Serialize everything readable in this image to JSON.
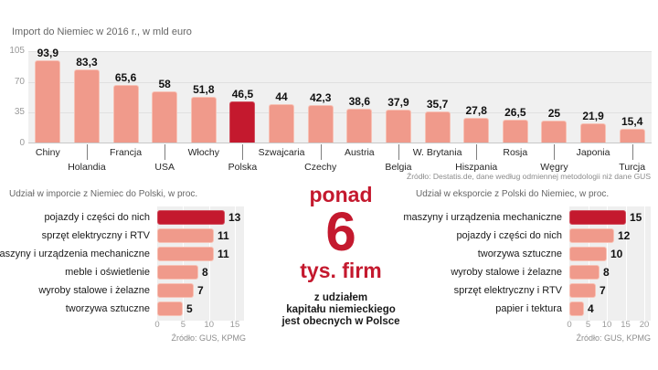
{
  "colors": {
    "bar_fill": "#F09A8B",
    "bar_border": "#F7C2B6",
    "highlight_fill": "#C4192E",
    "highlight_border": "#D15160",
    "plot_background": "#F0F0F0",
    "panel_background": "#EFEFEF",
    "title_text": "#666666",
    "tick_text": "#999999",
    "source_text": "#8C8C8C",
    "label_text": "#1A1A1A"
  },
  "chart_data": [
    {
      "type": "bar",
      "orientation": "vertical",
      "title": "Import do Niemiec w 2016 r., w mld euro",
      "categories": [
        "Chiny",
        "Holandia",
        "Francja",
        "USA",
        "Włochy",
        "Polska",
        "Szwajcaria",
        "Czechy",
        "Austria",
        "Belgia",
        "W. Brytania",
        "Hiszpania",
        "Rosja",
        "Węgry",
        "Japonia",
        "Turcja"
      ],
      "values": [
        93.9,
        83.3,
        65.6,
        58,
        51.8,
        46.5,
        44,
        42.3,
        38.6,
        37.9,
        35.7,
        27.8,
        26.5,
        25,
        21.9,
        15.4
      ],
      "value_labels": [
        "93,9",
        "83,3",
        "65,6",
        "58",
        "51,8",
        "46,5",
        "44",
        "42,3",
        "38,6",
        "37,9",
        "35,7",
        "27,8",
        "26,5",
        "25",
        "21,9",
        "15,4"
      ],
      "highlighted_category": "Polska",
      "y_ticks": [
        105,
        70,
        35,
        0
      ],
      "ylim": [
        0,
        105
      ],
      "grid": true,
      "legend": false,
      "source": "Źródło: Destatis.de, dane według odmiennej metodologii niż dane GUS"
    },
    {
      "type": "bar",
      "orientation": "horizontal",
      "title": "Udział w imporcie z Niemiec do Polski, w proc.",
      "categories": [
        "pojazdy i części do nich",
        "sprzęt elektryczny i RTV",
        "maszyny i urządzenia mechaniczne",
        "meble i oświetlenie",
        "wyroby stalowe i żelazne",
        "tworzywa sztuczne"
      ],
      "values": [
        13,
        11,
        11,
        8,
        7,
        5
      ],
      "highlighted_category": "pojazdy i części do nich",
      "x_ticks": [
        0,
        5,
        10,
        15
      ],
      "xlim": [
        0,
        16.75
      ],
      "grid": true,
      "legend": false,
      "source": "Źródło: GUS, KPMG"
    },
    {
      "type": "bar",
      "orientation": "horizontal",
      "title": "Udział w eksporcie z Polski do Niemiec, w proc.",
      "categories": [
        "maszyny i urządzenia mechaniczne",
        "pojazdy i części do nich",
        "tworzywa sztuczne",
        "wyroby stalowe i żelazne",
        "sprzęt elektryczny i RTV",
        "papier i tektura"
      ],
      "values": [
        15,
        12,
        10,
        8,
        7,
        4
      ],
      "highlighted_category": "maszyny i urządzenia mechaniczne",
      "x_ticks": [
        0,
        5,
        10,
        15,
        20
      ],
      "xlim": [
        0,
        21.7
      ],
      "grid": true,
      "legend": false,
      "source": "Źródło: GUS, KPMG"
    }
  ],
  "center": {
    "intro": "ponad",
    "number": "6",
    "unit": "tys. firm",
    "description_lines": [
      "z udziałem",
      "kapitału niemieckiego",
      "jest obecnych w Polsce"
    ]
  }
}
